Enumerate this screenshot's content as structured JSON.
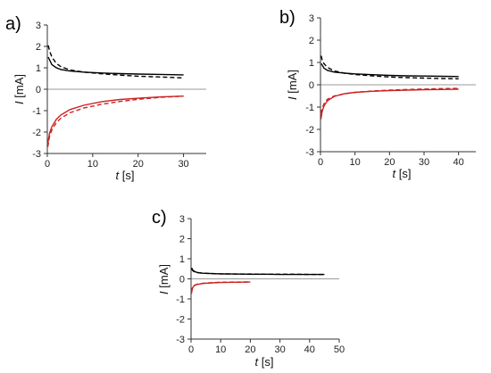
{
  "colors": {
    "black_series": "#000000",
    "red_series": "#cc2222",
    "zero_line": "#9a9a9a",
    "axis": "#333333"
  },
  "chart_data": [
    {
      "type": "line",
      "panel_label": "a)",
      "xlabel_var": "t",
      "xlabel_unit": " [s]",
      "ylabel_var": "I",
      "ylabel_unit": " [mA]",
      "xlim": [
        0,
        35
      ],
      "ylim": [
        -3,
        3
      ],
      "xticks": [
        0,
        10,
        20,
        30
      ],
      "yticks": [
        -3,
        -2,
        -1,
        0,
        1,
        2,
        3
      ],
      "series": [
        {
          "color": "black",
          "dash": "solid",
          "x": [
            0.2,
            1,
            2,
            3,
            5,
            8,
            12,
            16,
            20,
            25,
            30
          ],
          "y": [
            1.5,
            1.15,
            1.0,
            0.92,
            0.85,
            0.8,
            0.76,
            0.73,
            0.71,
            0.69,
            0.67
          ]
        },
        {
          "color": "black",
          "dash": "dashed",
          "x": [
            0.2,
            0.5,
            1,
            2,
            3,
            5,
            8,
            12,
            16,
            20,
            25,
            30
          ],
          "y": [
            2.05,
            1.8,
            1.5,
            1.2,
            1.05,
            0.9,
            0.8,
            0.72,
            0.66,
            0.61,
            0.57,
            0.53
          ]
        },
        {
          "color": "red",
          "dash": "solid",
          "x": [
            0.1,
            0.5,
            1,
            2,
            3,
            5,
            8,
            12,
            16,
            20,
            25,
            30
          ],
          "y": [
            -2.55,
            -2.05,
            -1.75,
            -1.4,
            -1.2,
            -0.95,
            -0.75,
            -0.58,
            -0.48,
            -0.42,
            -0.36,
            -0.32
          ]
        },
        {
          "color": "red",
          "dash": "dashed",
          "x": [
            0.1,
            0.5,
            1,
            2,
            3,
            5,
            8,
            12,
            16,
            20,
            25,
            30
          ],
          "y": [
            -2.7,
            -2.2,
            -1.9,
            -1.55,
            -1.35,
            -1.1,
            -0.88,
            -0.7,
            -0.57,
            -0.47,
            -0.38,
            -0.32
          ]
        }
      ]
    },
    {
      "type": "line",
      "panel_label": "b)",
      "xlabel_var": "t",
      "xlabel_unit": " [s]",
      "ylabel_var": "I",
      "ylabel_unit": " [mA]",
      "xlim": [
        0,
        45
      ],
      "ylim": [
        -3,
        3
      ],
      "xticks": [
        0,
        10,
        20,
        30,
        40
      ],
      "yticks": [
        -3,
        -2,
        -1,
        0,
        1,
        2,
        3
      ],
      "series": [
        {
          "color": "black",
          "dash": "solid",
          "x": [
            0.2,
            1,
            2,
            4,
            7,
            10,
            15,
            20,
            25,
            30,
            35,
            40
          ],
          "y": [
            0.95,
            0.75,
            0.65,
            0.57,
            0.52,
            0.49,
            0.45,
            0.42,
            0.4,
            0.39,
            0.38,
            0.37
          ]
        },
        {
          "color": "black",
          "dash": "dashed",
          "x": [
            0.2,
            0.5,
            1,
            2,
            4,
            7,
            10,
            15,
            20,
            25,
            30,
            35,
            40
          ],
          "y": [
            1.3,
            1.1,
            0.95,
            0.78,
            0.62,
            0.52,
            0.46,
            0.4,
            0.35,
            0.32,
            0.3,
            0.28,
            0.27
          ]
        },
        {
          "color": "red",
          "dash": "solid",
          "x": [
            0.1,
            0.5,
            1,
            2,
            4,
            7,
            10,
            15,
            20,
            25,
            30,
            35,
            40
          ],
          "y": [
            -1.55,
            -1.2,
            -0.95,
            -0.72,
            -0.52,
            -0.4,
            -0.34,
            -0.29,
            -0.26,
            -0.24,
            -0.22,
            -0.21,
            -0.2
          ]
        },
        {
          "color": "red",
          "dash": "dashed",
          "x": [
            0.1,
            0.5,
            1,
            2,
            4,
            7,
            10,
            15,
            20,
            25,
            30,
            35,
            40
          ],
          "y": [
            -1.3,
            -1.05,
            -0.85,
            -0.65,
            -0.5,
            -0.4,
            -0.34,
            -0.28,
            -0.24,
            -0.21,
            -0.19,
            -0.17,
            -0.16
          ]
        }
      ]
    },
    {
      "type": "line",
      "panel_label": "c)",
      "xlabel_var": "t",
      "xlabel_unit": " [s]",
      "ylabel_var": "I",
      "ylabel_unit": " [mA]",
      "xlim": [
        0,
        50
      ],
      "ylim": [
        -3,
        3
      ],
      "xticks": [
        0,
        10,
        20,
        30,
        40,
        50
      ],
      "yticks": [
        -3,
        -2,
        -1,
        0,
        1,
        2,
        3
      ],
      "series": [
        {
          "color": "black",
          "dash": "solid",
          "x": [
            0.2,
            0.5,
            1,
            2,
            4,
            7,
            10,
            15,
            20,
            25,
            30,
            35,
            40,
            45
          ],
          "y": [
            0.55,
            0.45,
            0.38,
            0.32,
            0.28,
            0.26,
            0.25,
            0.24,
            0.23,
            0.23,
            0.22,
            0.22,
            0.22,
            0.22
          ]
        },
        {
          "color": "black",
          "dash": "dashed",
          "x": [
            0.2,
            0.5,
            1,
            2,
            4,
            7,
            10,
            15,
            20,
            25,
            30,
            35,
            40,
            45
          ],
          "y": [
            0.5,
            0.42,
            0.36,
            0.31,
            0.28,
            0.26,
            0.25,
            0.24,
            0.24,
            0.23,
            0.23,
            0.23,
            0.22,
            0.22
          ]
        },
        {
          "color": "red",
          "dash": "solid",
          "x": [
            0.1,
            0.5,
            1,
            2,
            4,
            7,
            10,
            15,
            20
          ],
          "y": [
            -0.75,
            -0.45,
            -0.35,
            -0.28,
            -0.23,
            -0.2,
            -0.18,
            -0.17,
            -0.16
          ]
        },
        {
          "color": "red",
          "dash": "dashed",
          "x": [
            0.1,
            0.5,
            1,
            2,
            4,
            7,
            10,
            15,
            20
          ],
          "y": [
            -0.65,
            -0.42,
            -0.33,
            -0.27,
            -0.22,
            -0.19,
            -0.17,
            -0.16,
            -0.15
          ]
        }
      ]
    }
  ]
}
